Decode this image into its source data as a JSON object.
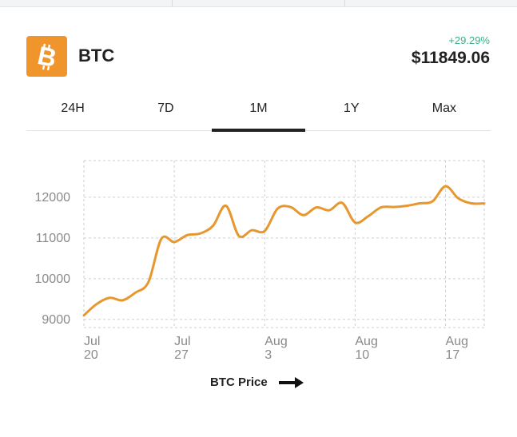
{
  "coin": {
    "symbol": "BTC",
    "change": "+29.29%",
    "price": "$11849.06",
    "logo_icon": "bitcoin-logo-icon",
    "logo_color": "#f0952c",
    "change_color": "#35b08a"
  },
  "tabs": [
    {
      "label": "24H",
      "active": false
    },
    {
      "label": "7D",
      "active": false
    },
    {
      "label": "1M",
      "active": true
    },
    {
      "label": "1Y",
      "active": false
    },
    {
      "label": "Max",
      "active": false
    }
  ],
  "chart_data": {
    "type": "line",
    "line_color": "#e8972e",
    "grid": true,
    "ylim": [
      8800,
      12900
    ],
    "yticks": [
      9000,
      10000,
      11000,
      12000
    ],
    "xlim": [
      "Jul 20",
      "Aug 20"
    ],
    "xticks": [
      {
        "date": "Jul 20",
        "label": [
          "Jul",
          "20"
        ]
      },
      {
        "date": "Jul 27",
        "label": [
          "Jul",
          "27"
        ]
      },
      {
        "date": "Aug 3",
        "label": [
          "Aug",
          "3"
        ]
      },
      {
        "date": "Aug 10",
        "label": [
          "Aug",
          "10"
        ]
      },
      {
        "date": "Aug 17",
        "label": [
          "Aug",
          "17"
        ]
      }
    ],
    "series": [
      {
        "name": "BTC Price",
        "x": [
          "Jul 20",
          "Jul 21",
          "Jul 22",
          "Jul 23",
          "Jul 24",
          "Jul 25",
          "Jul 26",
          "Jul 27",
          "Jul 28",
          "Jul 29",
          "Jul 30",
          "Jul 31",
          "Aug 1",
          "Aug 2",
          "Aug 3",
          "Aug 4",
          "Aug 5",
          "Aug 6",
          "Aug 7",
          "Aug 8",
          "Aug 9",
          "Aug 10",
          "Aug 11",
          "Aug 12",
          "Aug 13",
          "Aug 14",
          "Aug 15",
          "Aug 16",
          "Aug 17",
          "Aug 18",
          "Aug 19",
          "Aug 20"
        ],
        "values": [
          9100,
          9380,
          9530,
          9470,
          9660,
          9920,
          10980,
          10900,
          11070,
          11110,
          11300,
          11790,
          11050,
          11190,
          11170,
          11720,
          11760,
          11560,
          11750,
          11680,
          11860,
          11380,
          11530,
          11750,
          11760,
          11790,
          11850,
          11900,
          12270,
          11970,
          11850,
          11849
        ]
      }
    ]
  },
  "legend": {
    "label": "BTC Price",
    "icon": "arrow-right-icon"
  }
}
